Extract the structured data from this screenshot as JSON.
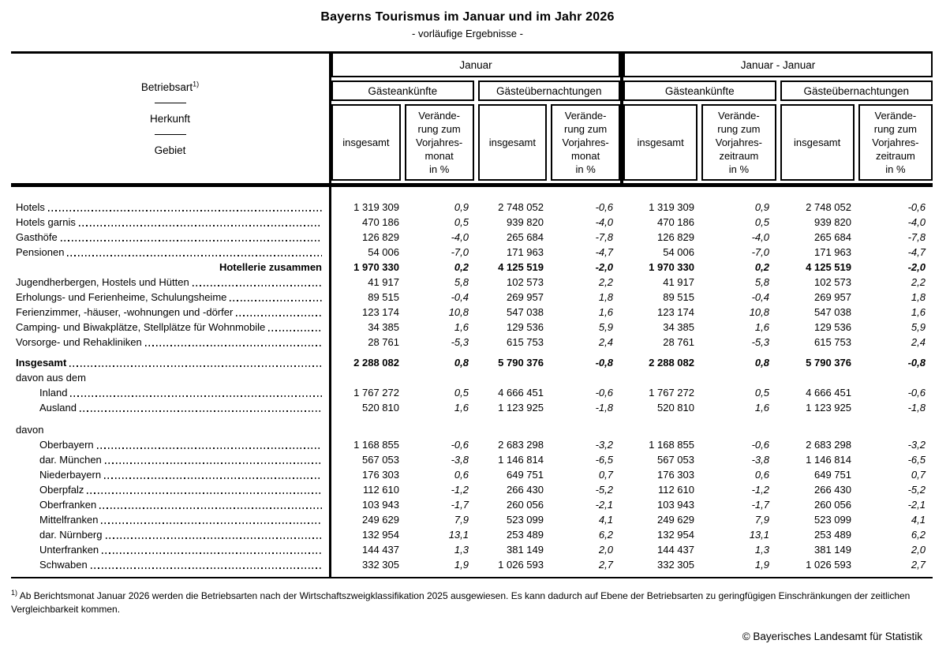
{
  "title": "Bayerns Tourismus im Januar und im Jahr 2026",
  "subtitle": "- vorläufige Ergebnisse -",
  "stub": {
    "line1": "Betriebsart",
    "footnote_marker": "1)",
    "line2": "Herkunft",
    "line3": "Gebiet"
  },
  "column_groups": [
    {
      "label": "Januar",
      "subgroups": [
        "Gästeankünfte",
        "Gästeübernachtungen"
      ],
      "measures": [
        "insgesamt",
        "Verände-\nrung zum\nVorjahres-\nmonat\nin %",
        "insgesamt",
        "Verände-\nrung zum\nVorjahres-\nmonat\nin %"
      ]
    },
    {
      "label": "Januar - Januar",
      "subgroups": [
        "Gästeankünfte",
        "Gästeübernachtungen"
      ],
      "measures": [
        "insgesamt",
        "Verände-\nrung zum\nVorjahres-\nzeitraum\nin %",
        "insgesamt",
        "Verände-\nrung zum\nVorjahres-\nzeitraum\nin %"
      ]
    }
  ],
  "rows": [
    {
      "label": "Hotels",
      "dots": true,
      "values": [
        "1 319 309",
        "0,9",
        "2 748 052",
        "-0,6",
        "1 319 309",
        "0,9",
        "2 748 052",
        "-0,6"
      ]
    },
    {
      "label": "Hotels garnis",
      "dots": true,
      "values": [
        "470 186",
        "0,5",
        "939 820",
        "-4,0",
        "470 186",
        "0,5",
        "939 820",
        "-4,0"
      ]
    },
    {
      "label": "Gasthöfe",
      "dots": true,
      "values": [
        "126 829",
        "-4,0",
        "265 684",
        "-7,8",
        "126 829",
        "-4,0",
        "265 684",
        "-7,8"
      ]
    },
    {
      "label": "Pensionen",
      "dots": true,
      "values": [
        "54 006",
        "-7,0",
        "171 963",
        "-4,7",
        "54 006",
        "-7,0",
        "171 963",
        "-4,7"
      ]
    },
    {
      "label": "Hotellerie zusammen",
      "bold": true,
      "align_right": true,
      "values": [
        "1 970 330",
        "0,2",
        "4 125 519",
        "-2,0",
        "1 970 330",
        "0,2",
        "4 125 519",
        "-2,0"
      ]
    },
    {
      "label": "Jugendherbergen, Hostels und Hütten",
      "dots": true,
      "values": [
        "41 917",
        "5,8",
        "102 573",
        "2,2",
        "41 917",
        "5,8",
        "102 573",
        "2,2"
      ]
    },
    {
      "label": "Erholungs- und Ferienheime, Schulungsheime",
      "dots": true,
      "values": [
        "89 515",
        "-0,4",
        "269 957",
        "1,8",
        "89 515",
        "-0,4",
        "269 957",
        "1,8"
      ]
    },
    {
      "label": "Ferienzimmer, -häuser, -wohnungen und -dörfer",
      "dots": true,
      "values": [
        "123 174",
        "10,8",
        "547 038",
        "1,6",
        "123 174",
        "10,8",
        "547 038",
        "1,6"
      ]
    },
    {
      "label": "Camping- und Biwakplätze, Stellplätze für Wohnmobile",
      "dots": true,
      "values": [
        "34 385",
        "1,6",
        "129 536",
        "5,9",
        "34 385",
        "1,6",
        "129 536",
        "5,9"
      ]
    },
    {
      "label": "Vorsorge- und Rehakliniken",
      "dots": true,
      "values": [
        "28 761",
        "-5,3",
        "615 753",
        "2,4",
        "28 761",
        "-5,3",
        "615 753",
        "2,4"
      ]
    },
    {
      "spacer": 7
    },
    {
      "label": "Insgesamt",
      "bold": true,
      "dots": true,
      "values": [
        "2 288 082",
        "0,8",
        "5 790 376",
        "-0,8",
        "2 288 082",
        "0,8",
        "5 790 376",
        "-0,8"
      ]
    },
    {
      "label": "davon aus dem",
      "section": true
    },
    {
      "label": "Inland",
      "indent": 1,
      "dots": true,
      "values": [
        "1 767 272",
        "0,5",
        "4 666 451",
        "-0,6",
        "1 767 272",
        "0,5",
        "4 666 451",
        "-0,6"
      ]
    },
    {
      "label": "Ausland",
      "indent": 1,
      "dots": true,
      "values": [
        "520 810",
        "1,6",
        "1 123 925",
        "-1,8",
        "520 810",
        "1,6",
        "1 123 925",
        "-1,8"
      ]
    },
    {
      "spacer": 9
    },
    {
      "label": "davon",
      "section": true
    },
    {
      "label": "Oberbayern",
      "indent": 1,
      "dots": true,
      "values": [
        "1 168 855",
        "-0,6",
        "2 683 298",
        "-3,2",
        "1 168 855",
        "-0,6",
        "2 683 298",
        "-3,2"
      ]
    },
    {
      "label": "dar. München",
      "indent": 1,
      "dots": true,
      "values": [
        "567 053",
        "-3,8",
        "1 146 814",
        "-6,5",
        "567 053",
        "-3,8",
        "1 146 814",
        "-6,5"
      ]
    },
    {
      "label": "Niederbayern",
      "indent": 1,
      "dots": true,
      "values": [
        "176 303",
        "0,6",
        "649 751",
        "0,7",
        "176 303",
        "0,6",
        "649 751",
        "0,7"
      ]
    },
    {
      "label": "Oberpfalz",
      "indent": 1,
      "dots": true,
      "values": [
        "112 610",
        "-1,2",
        "266 430",
        "-5,2",
        "112 610",
        "-1,2",
        "266 430",
        "-5,2"
      ]
    },
    {
      "label": "Oberfranken",
      "indent": 1,
      "dots": true,
      "values": [
        "103 943",
        "-1,7",
        "260 056",
        "-2,1",
        "103 943",
        "-1,7",
        "260 056",
        "-2,1"
      ]
    },
    {
      "label": "Mittelfranken",
      "indent": 1,
      "dots": true,
      "values": [
        "249 629",
        "7,9",
        "523 099",
        "4,1",
        "249 629",
        "7,9",
        "523 099",
        "4,1"
      ]
    },
    {
      "label": "dar. Nürnberg",
      "indent": 1,
      "dots": true,
      "values": [
        "132 954",
        "13,1",
        "253 489",
        "6,2",
        "132 954",
        "13,1",
        "253 489",
        "6,2"
      ]
    },
    {
      "label": "Unterfranken",
      "indent": 1,
      "dots": true,
      "values": [
        "144 437",
        "1,3",
        "381 149",
        "2,0",
        "144 437",
        "1,3",
        "381 149",
        "2,0"
      ]
    },
    {
      "label": "Schwaben",
      "indent": 1,
      "dots": true,
      "values": [
        "332 305",
        "1,9",
        "1 026 593",
        "2,7",
        "332 305",
        "1,9",
        "1 026 593",
        "2,7"
      ]
    }
  ],
  "footnote": {
    "marker": "1)",
    "text": " Ab Berichtsmonat Januar 2026 werden die Betriebsarten nach der Wirtschaftszweigklassifikation 2025 ausgewiesen. Es kann dadurch auf Ebene der Betriebsarten zu geringfügigen Einschränkungen der zeitlichen Vergleichbarkeit kommen."
  },
  "copyright": "© Bayerisches Landesamt für Statistik"
}
